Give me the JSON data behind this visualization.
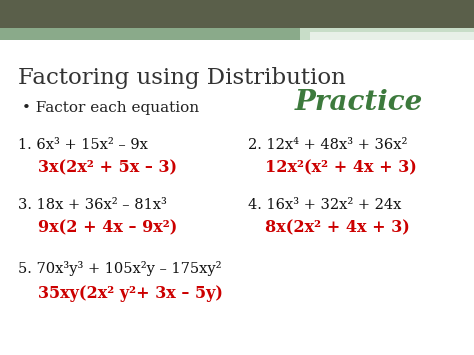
{
  "title": "Factoring using Distribution",
  "title_color": "#333333",
  "title_fontsize": 16.5,
  "subtitle_bullet": "Factor each equation",
  "subtitle_color": "#222222",
  "subtitle_fontsize": 11,
  "practice_text": "Practice",
  "practice_color": "#3d7a3d",
  "practice_fontsize": 20,
  "bg_color": "#ffffff",
  "top_bar_color": "#5a5f4a",
  "top_bar2_color": "#8aaa8a",
  "top_bar3_color": "#c8ddc8",
  "problems": [
    {
      "num": "1.",
      "problem": "6x³ + 15x² – 9x",
      "answer": "3x(2x² + 5x – 3)"
    },
    {
      "num": "2.",
      "problem": "12x⁴ + 48x³ + 36x²",
      "answer": "12x²(x² + 4x + 3)"
    },
    {
      "num": "3.",
      "problem": "18x + 36x² – 81x³",
      "answer": "9x(2 + 4x – 9x²)"
    },
    {
      "num": "4.",
      "problem": "16x³ + 32x² + 24x",
      "answer": "8x(2x² + 4x + 3)"
    },
    {
      "num": "5.",
      "problem": "70x³y³ + 105x²y – 175xy²",
      "answer": "35xy(2x² y²+ 3x – 5y)"
    }
  ],
  "problem_color": "#111111",
  "answer_color": "#cc0000",
  "problem_fontsize": 10.5,
  "answer_fontsize": 11.5
}
